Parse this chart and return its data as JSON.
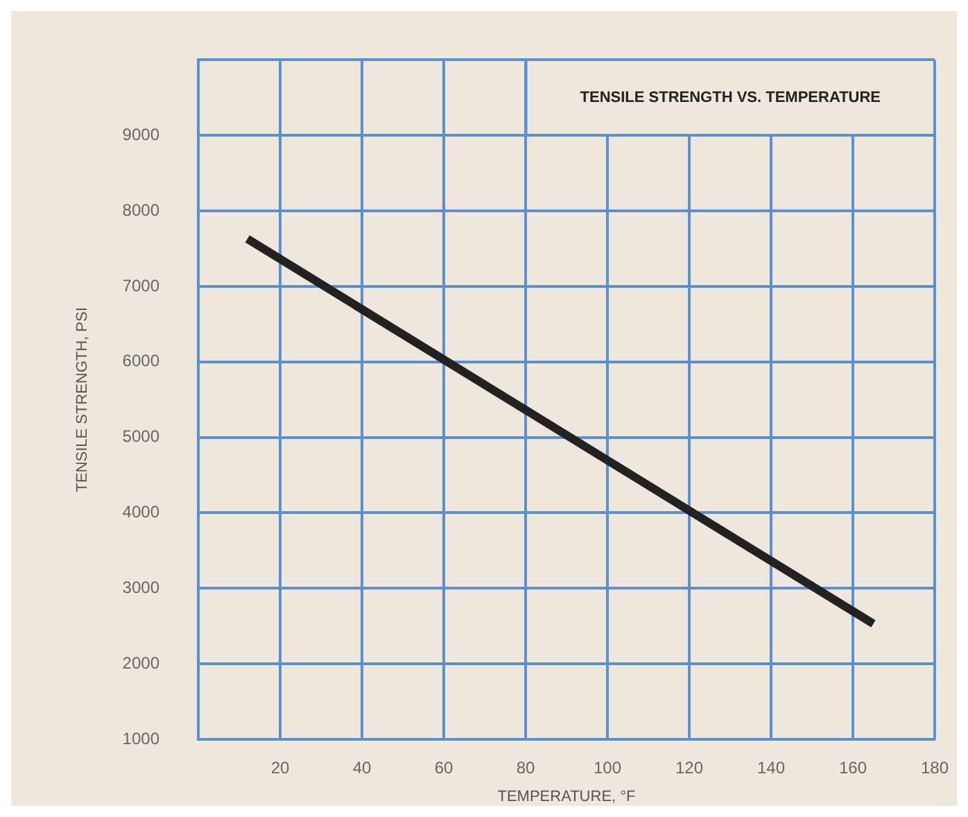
{
  "chart_data": {
    "type": "line",
    "title": "TENSILE STRENGTH VS. TEMPERATURE",
    "xlabel": "TEMPERATURE, °F",
    "ylabel": "TENSILE STRENGTH, PSI",
    "series": [
      {
        "color": "#222222",
        "x": [
          12,
          165
        ],
        "values": [
          7630,
          2530
        ]
      }
    ],
    "xlim": [
      0,
      180
    ],
    "xticks": [
      {
        "value": 0,
        "label": null
      },
      20,
      40,
      60,
      80,
      100,
      120,
      140,
      160,
      180
    ],
    "ylim": [
      1000,
      10000
    ],
    "yticks": [
      1000,
      2000,
      3000,
      4000,
      5000,
      6000,
      7000,
      8000,
      9000,
      {
        "value": 10000,
        "label": null
      }
    ],
    "grid": true,
    "legend": false,
    "marker": "none",
    "line_style": "solid"
  }
}
